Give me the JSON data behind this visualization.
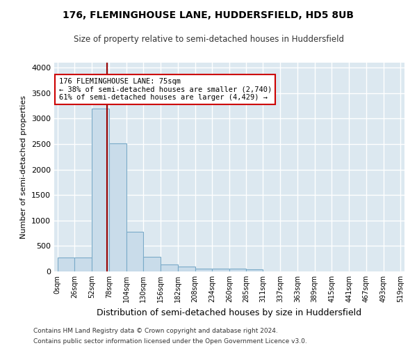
{
  "title": "176, FLEMINGHOUSE LANE, HUDDERSFIELD, HD5 8UB",
  "subtitle": "Size of property relative to semi-detached houses in Huddersfield",
  "xlabel": "Distribution of semi-detached houses by size in Huddersfield",
  "ylabel": "Number of semi-detached properties",
  "footnote1": "Contains HM Land Registry data © Crown copyright and database right 2024.",
  "footnote2": "Contains public sector information licensed under the Open Government Licence v3.0.",
  "bar_color": "#c9dcea",
  "bar_edge_color": "#7aaac8",
  "background_color": "#dce8f0",
  "fig_background": "#ffffff",
  "grid_color": "#ffffff",
  "property_line_value": 75,
  "property_line_color": "#990000",
  "annotation_text": "176 FLEMINGHOUSE LANE: 75sqm\n← 38% of semi-detached houses are smaller (2,740)\n61% of semi-detached houses are larger (4,429) →",
  "annotation_box_color": "#ffffff",
  "annotation_box_edge": "#cc0000",
  "bin_edges": [
    0,
    26,
    52,
    78,
    104,
    130,
    156,
    182,
    208,
    234,
    260,
    285,
    311,
    337,
    363,
    389,
    415,
    441,
    467,
    493,
    519
  ],
  "bar_heights": [
    270,
    270,
    3200,
    2520,
    780,
    290,
    140,
    90,
    60,
    55,
    50,
    35,
    5,
    5,
    5,
    5,
    5,
    5,
    5,
    5
  ],
  "ylim": [
    0,
    4100
  ],
  "yticks": [
    0,
    500,
    1000,
    1500,
    2000,
    2500,
    3000,
    3500,
    4000
  ]
}
